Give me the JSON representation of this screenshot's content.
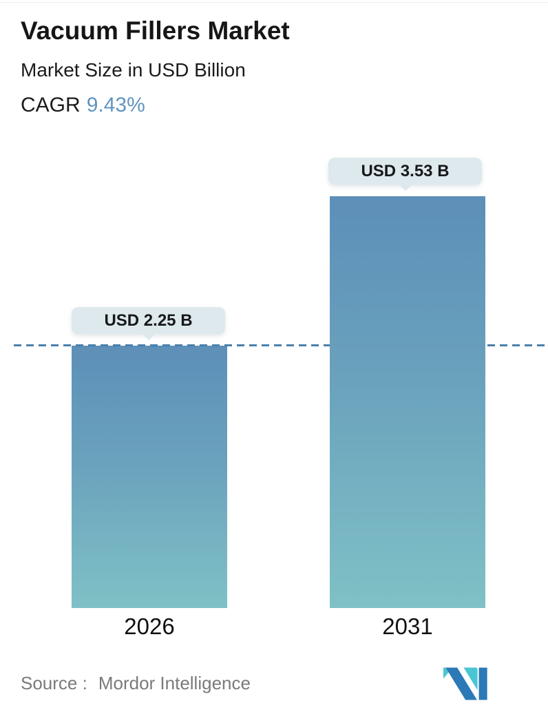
{
  "header": {
    "title": "Vacuum Fillers Market",
    "subtitle": "Market Size in USD Billion",
    "cagr_label": "CAGR",
    "cagr_value": "9.43%"
  },
  "chart_data": {
    "type": "bar",
    "title": "Vacuum Fillers Market",
    "subtitle": "Market Size in USD Billion",
    "unit": "USD Billion",
    "cagr_percent": 9.43,
    "categories": [
      "2026",
      "2031"
    ],
    "values": [
      2.25,
      3.53
    ],
    "value_labels": [
      "USD 2.25 B",
      "USD 3.53 B"
    ],
    "ylim": [
      0,
      3.95
    ],
    "grid": false,
    "legend": "none",
    "annotations": [
      {
        "type": "dashed_reference_line",
        "at_value": 2.25,
        "note": "horizontal dashed line at 2026 bar top spanning chart width"
      }
    ]
  },
  "footer": {
    "source_label": "Source :",
    "source_value": "Mordor Intelligence",
    "logo_name": "mordor-intelligence-logo"
  },
  "colors": {
    "bar_gradient_top": "#5d8fb8",
    "bar_gradient_bottom": "#7fc1c6",
    "dashed_line": "#4a80ab",
    "cagr_accent": "#6094c0",
    "tooltip_bg": "#dee9ed",
    "tooltip_text": "#17181c",
    "source_text": "#7a7a7a",
    "logo_blue": "#2c79b7",
    "logo_teal": "#4ac6d2"
  }
}
